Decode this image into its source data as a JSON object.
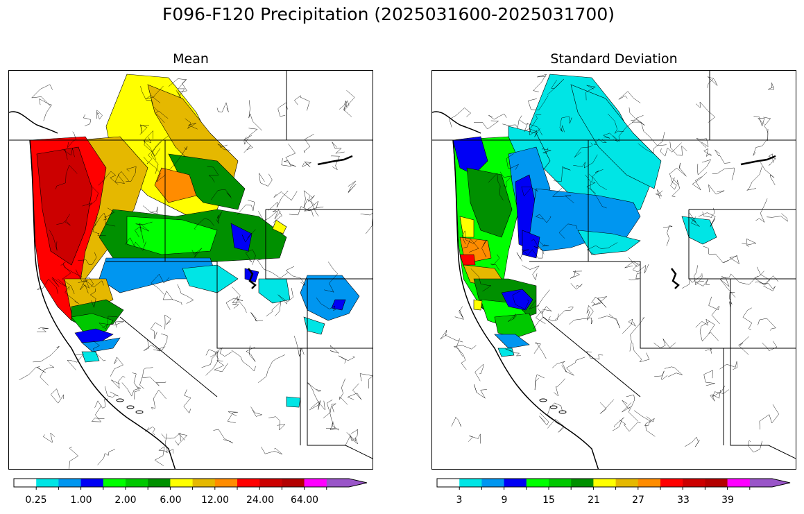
{
  "title": "F096-F120 Precipitation (2025031600-2025031700)",
  "panels": [
    {
      "id": "mean",
      "title": "Mean",
      "colorbar": {
        "colors": [
          "#ffffff",
          "#00e5e5",
          "#0096f0",
          "#0000f5",
          "#00ff00",
          "#00c800",
          "#009000",
          "#ffff00",
          "#e5b800",
          "#ff8c00",
          "#ff0000",
          "#cc0000",
          "#b30000",
          "#ff00ff",
          "#9955c8"
        ],
        "tick_labels": [
          "0.25",
          "1.00",
          "2.00",
          "6.00",
          "12.00",
          "24.00",
          "64.00"
        ],
        "extend": "max"
      }
    },
    {
      "id": "stddev",
      "title": "Standard Deviation",
      "colorbar": {
        "colors": [
          "#ffffff",
          "#00e5e5",
          "#0096f0",
          "#0000f5",
          "#00ff00",
          "#00c800",
          "#009000",
          "#ffff00",
          "#e5b800",
          "#ff8c00",
          "#ff0000",
          "#cc0000",
          "#b30000",
          "#ff00ff",
          "#9955c8"
        ],
        "tick_labels": [
          "3",
          "9",
          "15",
          "21",
          "27",
          "33",
          "39"
        ],
        "extend": "max"
      }
    }
  ]
}
